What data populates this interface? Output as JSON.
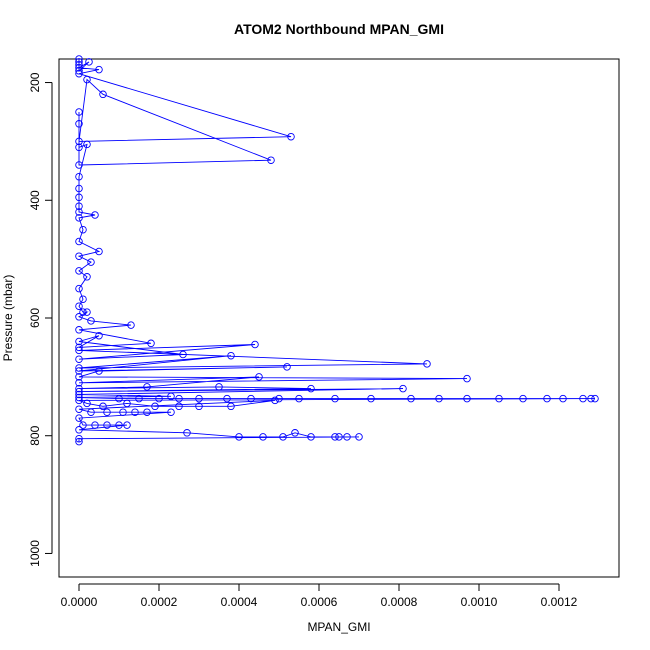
{
  "chart_data": {
    "type": "line",
    "title": "ATOM2 Northbound MPAN_GMI",
    "xlabel": "MPAN_GMI",
    "ylabel": "Pressure (mbar)",
    "xlim": [
      -5e-05,
      0.00135
    ],
    "ylim": [
      1040,
      160
    ],
    "y_inverted": true,
    "grid": false,
    "x_ticks": [
      0.0,
      0.0002,
      0.0004,
      0.0006,
      0.0008,
      0.001,
      0.0012
    ],
    "x_tick_labels": [
      "0.0000",
      "0.0002",
      "0.0004",
      "0.0006",
      "0.0008",
      "0.0010",
      "0.0012"
    ],
    "y_ticks": [
      200,
      400,
      600,
      800,
      1000
    ],
    "y_tick_labels": [
      "200",
      "400",
      "600",
      "800",
      "1000"
    ],
    "series": [
      {
        "color": "#0000ff",
        "marker": "open-circle",
        "points": [
          [
            0.0,
            160
          ],
          [
            0.0,
            165
          ],
          [
            0.0,
            170
          ],
          [
            0.0,
            180
          ],
          [
            2.5e-05,
            165
          ],
          [
            0.0,
            175
          ],
          [
            5e-05,
            178
          ],
          [
            0.0,
            185
          ],
          [
            0.00053,
            292
          ],
          [
            0.0,
            300
          ],
          [
            2e-05,
            195
          ],
          [
            6e-05,
            220
          ],
          [
            0.00048,
            332
          ],
          [
            0.0,
            340
          ],
          [
            0.0,
            250
          ],
          [
            0.0,
            270
          ],
          [
            0.0,
            310
          ],
          [
            2e-05,
            305
          ],
          [
            0.0,
            360
          ],
          [
            0.0,
            380
          ],
          [
            0.0,
            395
          ],
          [
            0.0,
            410
          ],
          [
            0.0,
            420
          ],
          [
            4e-05,
            425
          ],
          [
            0.0,
            430
          ],
          [
            1e-05,
            450
          ],
          [
            0.0,
            470
          ],
          [
            5e-05,
            487
          ],
          [
            0.0,
            495
          ],
          [
            3e-05,
            505
          ],
          [
            0.0,
            520
          ],
          [
            2e-05,
            530
          ],
          [
            0.0,
            550
          ],
          [
            1e-05,
            568
          ],
          [
            0.0,
            580
          ],
          [
            1e-05,
            590
          ],
          [
            2e-05,
            590
          ],
          [
            0.0,
            598
          ],
          [
            3e-05,
            605
          ],
          [
            0.00013,
            612
          ],
          [
            0.0,
            620
          ],
          [
            0.00018,
            643
          ],
          [
            0.0,
            650
          ],
          [
            5e-05,
            630
          ],
          [
            0.0,
            640
          ],
          [
            0.00026,
            662
          ],
          [
            0.0,
            670
          ],
          [
            0.00044,
            645
          ],
          [
            0.0,
            655
          ],
          [
            0.00087,
            678
          ],
          [
            0.0,
            685
          ],
          [
            0.00038,
            664
          ],
          [
            0.0,
            690
          ],
          [
            0.00052,
            683
          ],
          [
            5e-05,
            690
          ],
          [
            0.0,
            700
          ],
          [
            0.00097,
            703
          ],
          [
            0.0,
            710
          ],
          [
            0.00045,
            700
          ],
          [
            0.00017,
            717
          ],
          [
            0.0,
            720
          ],
          [
            0.00035,
            717
          ],
          [
            0.00058,
            720
          ],
          [
            0.0,
            725
          ],
          [
            0.00081,
            720
          ],
          [
            0.0,
            730
          ],
          [
            0.00023,
            733
          ],
          [
            0.0,
            735
          ],
          [
            0.0001,
            737
          ],
          [
            0.00015,
            737
          ],
          [
            0.0002,
            737
          ],
          [
            0.00025,
            737
          ],
          [
            0.0003,
            737
          ],
          [
            0.00037,
            737
          ],
          [
            0.00043,
            737
          ],
          [
            0.0005,
            737
          ],
          [
            0.00055,
            737
          ],
          [
            0.00064,
            737
          ],
          [
            0.00073,
            737
          ],
          [
            0.00083,
            737
          ],
          [
            0.0009,
            737
          ],
          [
            0.00097,
            737
          ],
          [
            0.00105,
            737
          ],
          [
            0.00111,
            737
          ],
          [
            0.00117,
            737
          ],
          [
            0.00121,
            737
          ],
          [
            0.00126,
            737
          ],
          [
            0.00128,
            737
          ],
          [
            0.00129,
            737
          ],
          [
            0.0,
            740
          ],
          [
            2e-05,
            745
          ],
          [
            6e-05,
            750
          ],
          [
            0.00012,
            745
          ],
          [
            0.00019,
            750
          ],
          [
            0.00025,
            750
          ],
          [
            0.0003,
            750
          ],
          [
            0.00038,
            750
          ],
          [
            0.00049,
            740
          ],
          [
            0.0,
            755
          ],
          [
            3e-05,
            760
          ],
          [
            7e-05,
            760
          ],
          [
            0.00011,
            760
          ],
          [
            0.00014,
            760
          ],
          [
            0.00017,
            760
          ],
          [
            0.00023,
            760
          ],
          [
            0.0,
            770
          ],
          [
            1e-05,
            782
          ],
          [
            4e-05,
            782
          ],
          [
            7e-05,
            782
          ],
          [
            0.0001,
            782
          ],
          [
            0.00012,
            782
          ],
          [
            0.0,
            790
          ],
          [
            0.00027,
            795
          ],
          [
            0.0004,
            802
          ],
          [
            0.00046,
            802
          ],
          [
            0.00051,
            802
          ],
          [
            0.00054,
            795
          ],
          [
            0.00058,
            802
          ],
          [
            0.00064,
            802
          ],
          [
            0.00065,
            802
          ],
          [
            0.00067,
            802
          ],
          [
            0.0007,
            802
          ],
          [
            0.0,
            805
          ],
          [
            0.0,
            810
          ]
        ]
      }
    ]
  }
}
